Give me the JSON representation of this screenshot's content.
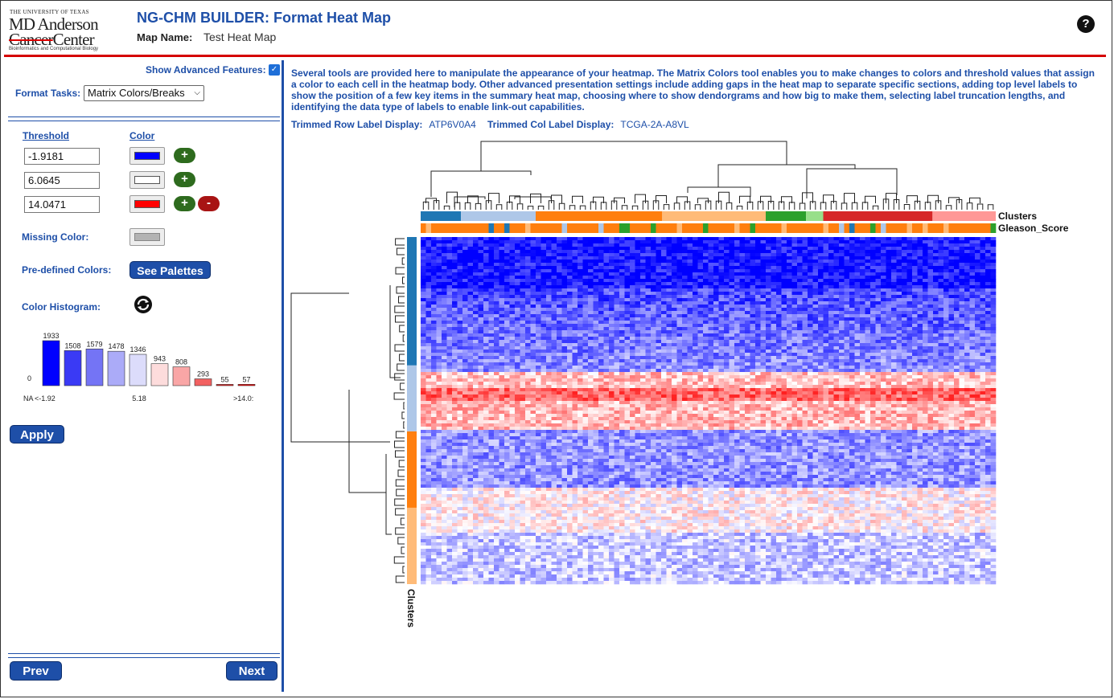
{
  "header": {
    "logo_line1": "THE UNIVERSITY OF TEXAS",
    "logo_line2": "MD Anderson",
    "logo_line3a": "Cancer",
    "logo_line3b": "Center",
    "logo_line4": "Bioinformatics and Computational Biology",
    "title": "NG-CHM BUILDER: Format Heat Map",
    "map_name_label": "Map Name:",
    "map_name_value": "Test Heat Map",
    "help_label": "?"
  },
  "left_panel": {
    "show_advanced_label": "Show Advanced Features:",
    "show_advanced_checked": true,
    "format_tasks_label": "Format Tasks:",
    "format_tasks_value": "Matrix Colors/Breaks",
    "threshold_header": "Threshold",
    "color_header": "Color",
    "breaks": [
      {
        "threshold": "-1.9181",
        "color": "#0000ff"
      },
      {
        "threshold": "6.0645",
        "color": "#ffffff"
      },
      {
        "threshold": "14.0471",
        "color": "#ff0000"
      }
    ],
    "add_label": "+",
    "remove_label": "-",
    "missing_color_label": "Missing Color:",
    "missing_color": "#b3b3b3",
    "predefined_label": "Pre-defined Colors:",
    "palettes_button": "See Palettes",
    "histogram_label": "Color Histogram:",
    "histogram": {
      "zero_label": "0",
      "bins": [
        {
          "count": "1933",
          "value": 1933,
          "color": "#0000ff"
        },
        {
          "count": "1508",
          "value": 1508,
          "color": "#3a3af5"
        },
        {
          "count": "1579",
          "value": 1579,
          "color": "#7474f5"
        },
        {
          "count": "1478",
          "value": 1478,
          "color": "#ababf8"
        },
        {
          "count": "1346",
          "value": 1346,
          "color": "#dcdcfb"
        },
        {
          "count": "943",
          "value": 943,
          "color": "#fddcdc"
        },
        {
          "count": "808",
          "value": 808,
          "color": "#f9a6a6"
        },
        {
          "count": "293",
          "value": 293,
          "color": "#f26161"
        },
        {
          "count": "55",
          "value": 55,
          "color": "#ee1c1c"
        },
        {
          "count": "57",
          "value": 57,
          "color": "#ff0000"
        }
      ],
      "axis_labels": [
        "NA",
        "<-1.92",
        "5.18",
        ">14.0:"
      ]
    },
    "apply_button": "Apply",
    "prev_button": "Prev",
    "next_button": "Next"
  },
  "main": {
    "description": "Several tools are provided here to manipulate the appearance of your heatmap. The Matrix Colors tool enables you to make changes to colors and threshold values that assign a color to each cell in the heatmap body. Other advanced presentation settings include adding gaps in the heat map to separate specific sections, adding top level labels to show the position of a few key items in the summary heat map, choosing where to show dendorgrams and how big to make them, selecting label truncation lengths, and identifying the data type of labels to enable link-out capabilities.",
    "trimmed_row_label": "Trimmed Row Label Display:",
    "trimmed_row_value": "ATP6V0A4",
    "trimmed_col_label": "Trimmed Col Label Display:",
    "trimmed_col_value": "TCGA-2A-A8VL",
    "col_covariates": [
      "Clusters",
      "Gleason_Score"
    ],
    "row_covariate": "Clusters",
    "cluster_colors": [
      "#1f77b4",
      "#aec7e8",
      "#ff7f0e",
      "#ffbb78",
      "#2ca02c",
      "#98df8a",
      "#d62728",
      "#ff9896"
    ],
    "gleason_colors": [
      "#ff7f0e",
      "#2ca02c",
      "#ffbb78",
      "#aec7e8",
      "#1f77b4",
      "#d62728"
    ]
  }
}
